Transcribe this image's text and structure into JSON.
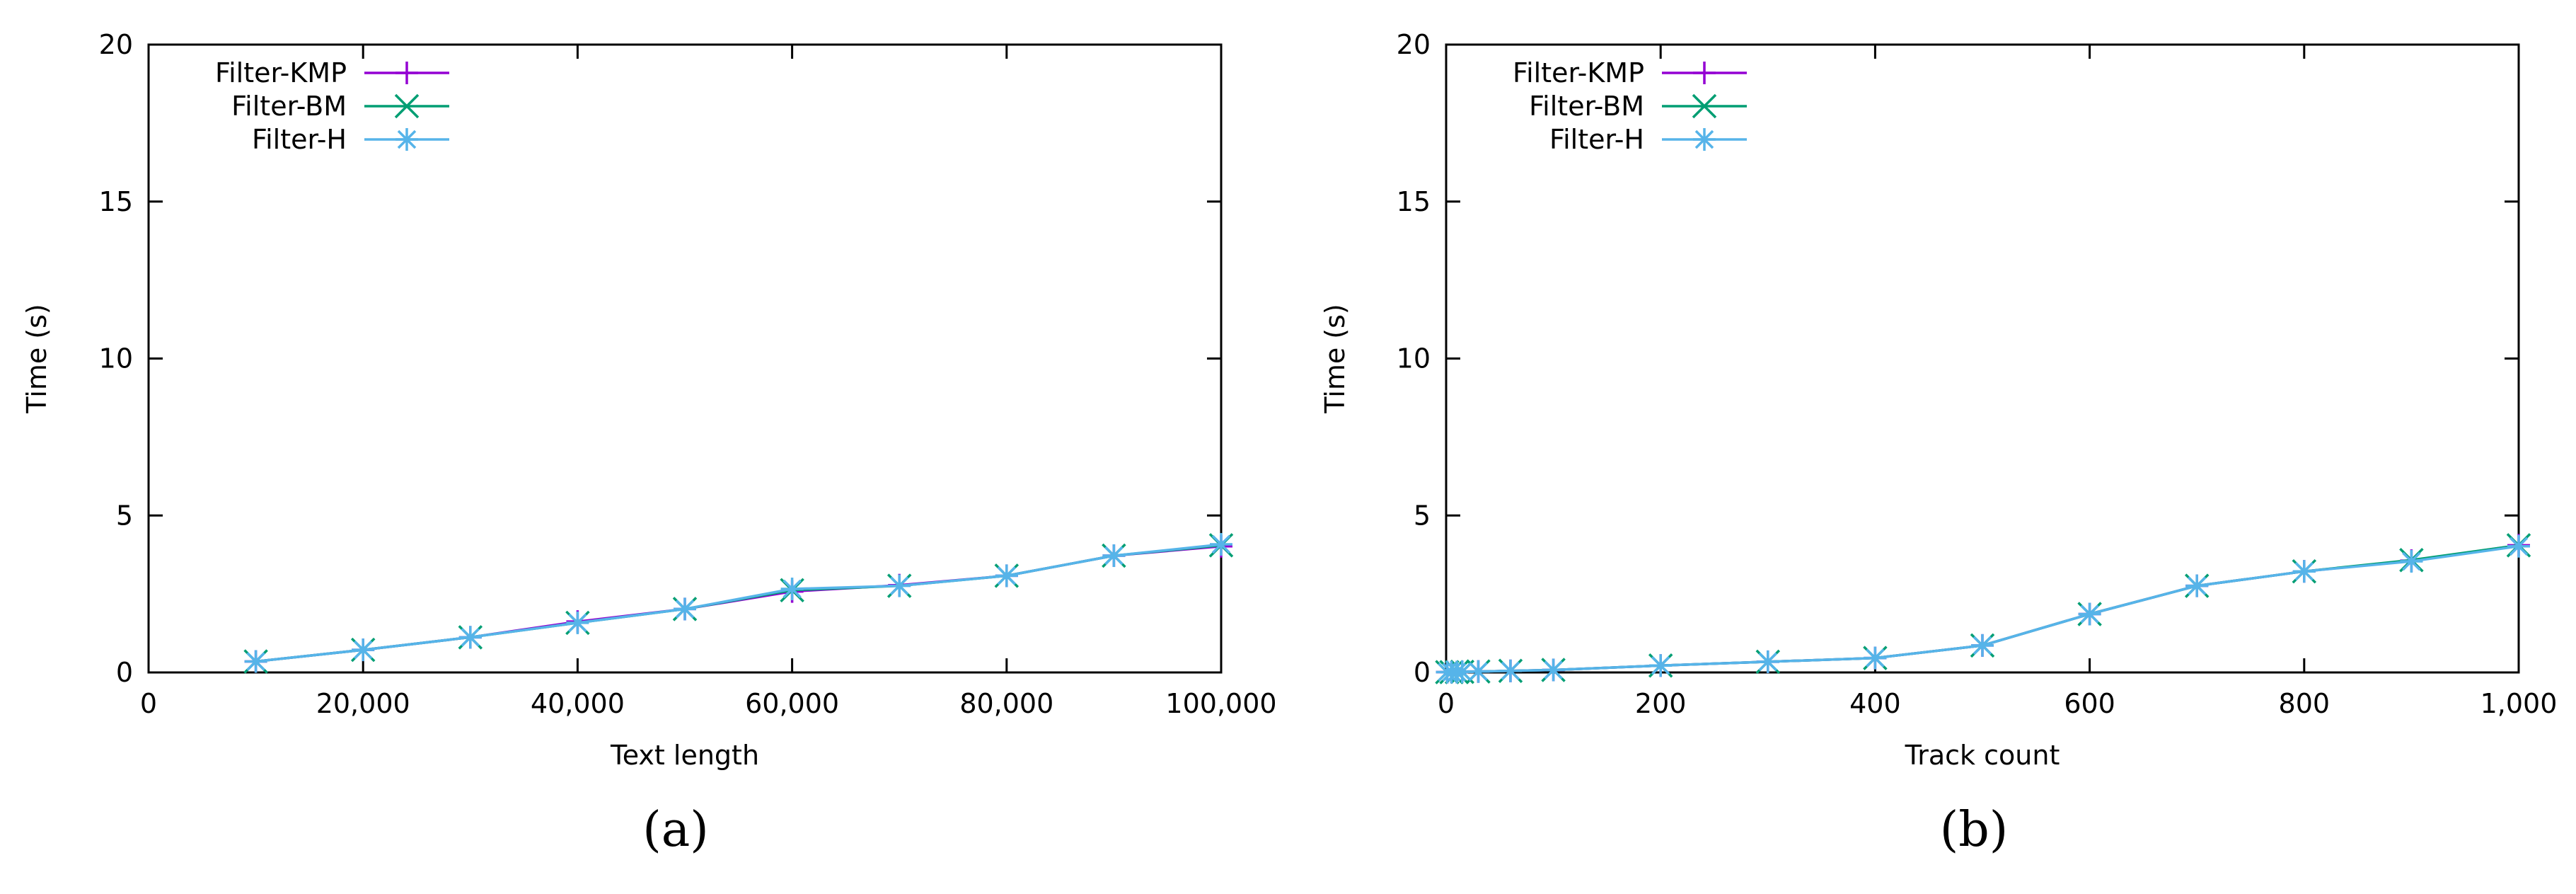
{
  "chart_data": [
    {
      "type": "line",
      "panel_label": "(a)",
      "xlabel": "Text length",
      "ylabel": "Time (s)",
      "xlim": [
        0,
        100000
      ],
      "ylim": [
        0,
        20
      ],
      "xticks": [
        0,
        20000,
        40000,
        60000,
        80000,
        100000
      ],
      "xtick_labels": [
        "0",
        "20,000",
        "40,000",
        "60,000",
        "80,000",
        "100,000"
      ],
      "yticks": [
        0,
        5,
        10,
        15,
        20
      ],
      "ytick_labels": [
        "0",
        "5",
        "10",
        "15",
        "20"
      ],
      "grid": false,
      "legend_position": "top-left",
      "series": [
        {
          "name": "Filter-KMP",
          "color": "#9400d3",
          "marker": "plus",
          "x": [
            10000,
            20000,
            30000,
            40000,
            50000,
            60000,
            70000,
            80000,
            90000,
            100000
          ],
          "y": [
            0.35,
            0.72,
            1.12,
            1.62,
            2.02,
            2.58,
            2.78,
            3.08,
            3.72,
            4.02
          ]
        },
        {
          "name": "Filter-BM",
          "color": "#009e73",
          "marker": "cross",
          "x": [
            10000,
            20000,
            30000,
            40000,
            50000,
            60000,
            70000,
            80000,
            90000,
            100000
          ],
          "y": [
            0.35,
            0.72,
            1.12,
            1.58,
            2.02,
            2.62,
            2.76,
            3.08,
            3.72,
            4.05
          ]
        },
        {
          "name": "Filter-H",
          "color": "#56b4e9",
          "marker": "star",
          "x": [
            10000,
            20000,
            30000,
            40000,
            50000,
            60000,
            70000,
            80000,
            90000,
            100000
          ],
          "y": [
            0.35,
            0.72,
            1.12,
            1.58,
            2.02,
            2.66,
            2.76,
            3.08,
            3.72,
            4.08
          ]
        }
      ]
    },
    {
      "type": "line",
      "panel_label": "(b)",
      "xlabel": "Track count",
      "ylabel": "Time (s)",
      "xlim": [
        0,
        1000
      ],
      "ylim": [
        0,
        20
      ],
      "xticks": [
        0,
        200,
        400,
        600,
        800,
        1000
      ],
      "xtick_labels": [
        "0",
        "200",
        "400",
        "600",
        "800",
        "1,000"
      ],
      "yticks": [
        0,
        5,
        10,
        15,
        20
      ],
      "ytick_labels": [
        "0",
        "5",
        "10",
        "15",
        "20"
      ],
      "grid": false,
      "legend_position": "top-left",
      "series": [
        {
          "name": "Filter-KMP",
          "color": "#9400d3",
          "marker": "plus",
          "x": [
            1,
            5,
            10,
            15,
            30,
            60,
            100,
            200,
            300,
            400,
            500,
            600,
            700,
            800,
            900,
            1000
          ],
          "y": [
            0.01,
            0.01,
            0.01,
            0.02,
            0.03,
            0.05,
            0.08,
            0.22,
            0.34,
            0.46,
            0.86,
            1.86,
            2.76,
            3.22,
            3.56,
            4.05
          ]
        },
        {
          "name": "Filter-BM",
          "color": "#009e73",
          "marker": "cross",
          "x": [
            1,
            5,
            10,
            15,
            30,
            60,
            100,
            200,
            300,
            400,
            500,
            600,
            700,
            800,
            900,
            1000
          ],
          "y": [
            0.01,
            0.01,
            0.01,
            0.02,
            0.03,
            0.05,
            0.08,
            0.22,
            0.34,
            0.46,
            0.86,
            1.86,
            2.76,
            3.22,
            3.58,
            4.05
          ]
        },
        {
          "name": "Filter-H",
          "color": "#56b4e9",
          "marker": "star",
          "x": [
            1,
            5,
            10,
            15,
            30,
            60,
            100,
            200,
            300,
            400,
            500,
            600,
            700,
            800,
            900,
            1000
          ],
          "y": [
            0.01,
            0.01,
            0.01,
            0.02,
            0.03,
            0.05,
            0.08,
            0.22,
            0.34,
            0.46,
            0.86,
            1.86,
            2.76,
            3.22,
            3.54,
            4.02
          ]
        }
      ]
    }
  ]
}
